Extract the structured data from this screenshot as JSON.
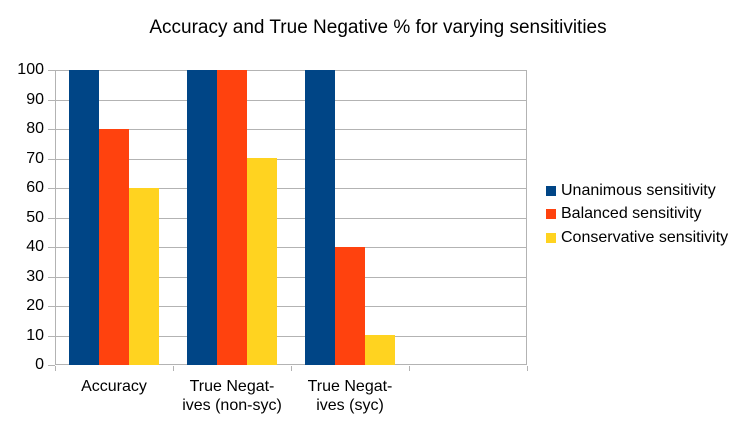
{
  "chart_data": {
    "type": "bar",
    "title": "Accuracy and True Negative % for varying sensitivities",
    "categories": [
      "Accuracy",
      "True Negat-\nives (non-syc)",
      "True Negat-\nives (syc)",
      ""
    ],
    "series": [
      {
        "name": "Unanimous sensitivity",
        "color": "#004586",
        "values": [
          100,
          100,
          100,
          null
        ]
      },
      {
        "name": "Balanced sensitivity",
        "color": "#ff420e",
        "values": [
          80,
          100,
          40,
          null
        ]
      },
      {
        "name": "Conservative sensitivity",
        "color": "#ffd320",
        "values": [
          60,
          70,
          10,
          null
        ]
      }
    ],
    "xlabel": "",
    "ylabel": "",
    "ylim": [
      0,
      100
    ],
    "ytick_step": 10,
    "yticklabels": [
      "0",
      "10",
      "20",
      "30",
      "40",
      "50",
      "60",
      "70",
      "80",
      "90",
      "100"
    ],
    "grid": true,
    "legend_position": "right"
  },
  "colors": {
    "background": "#ffffff",
    "grid": "#b3b3b3",
    "text": "#000000"
  }
}
